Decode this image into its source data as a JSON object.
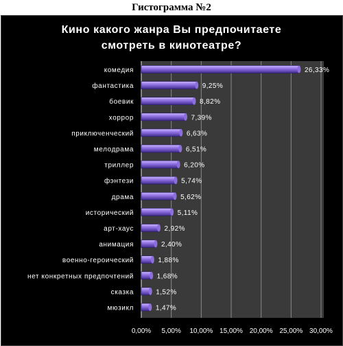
{
  "caption": "Гистограмма №2",
  "chart_data": {
    "type": "bar",
    "orientation": "horizontal",
    "title_lines": [
      "Кино какого жанра Вы предпочитаете",
      "смотреть в кинотеатре?"
    ],
    "categories": [
      "комедия",
      "фантастика",
      "боевик",
      "хоррор",
      "приключенческий",
      "мелодрама",
      "триллер",
      "фэнтези",
      "драма",
      "исторический",
      "арт-хаус",
      "анимация",
      "военно-героический",
      "нет конкретных предпочтений",
      "сказка",
      "мюзикл"
    ],
    "values": [
      26.33,
      9.25,
      8.82,
      7.39,
      6.63,
      6.51,
      6.2,
      5.74,
      5.62,
      5.11,
      2.92,
      2.4,
      1.88,
      1.68,
      1.52,
      1.47
    ],
    "value_labels": [
      "26,33%",
      "9,25%",
      "8,82%",
      "7,39%",
      "6,63%",
      "6,51%",
      "6,20%",
      "5,74%",
      "5,62%",
      "5,11%",
      "2,92%",
      "2,40%",
      "1,88%",
      "1,68%",
      "1,52%",
      "1,47%"
    ],
    "xlim": [
      0,
      30
    ],
    "xticks": [
      0,
      5,
      10,
      15,
      20,
      25,
      30
    ],
    "xtick_labels": [
      "0,00%",
      "5,00%",
      "10,00%",
      "15,00%",
      "20,00%",
      "25,00%",
      "30,00%"
    ],
    "grid": true,
    "legend": "none",
    "colors": {
      "background": "#000000",
      "plot_area": "#3a3a3a",
      "bar_light": "#c9b6ff",
      "bar_mid": "#8d6de0",
      "bar_dark": "#3e2a8a",
      "text": "#ffffff",
      "gridline": "#8a8a8a"
    }
  }
}
